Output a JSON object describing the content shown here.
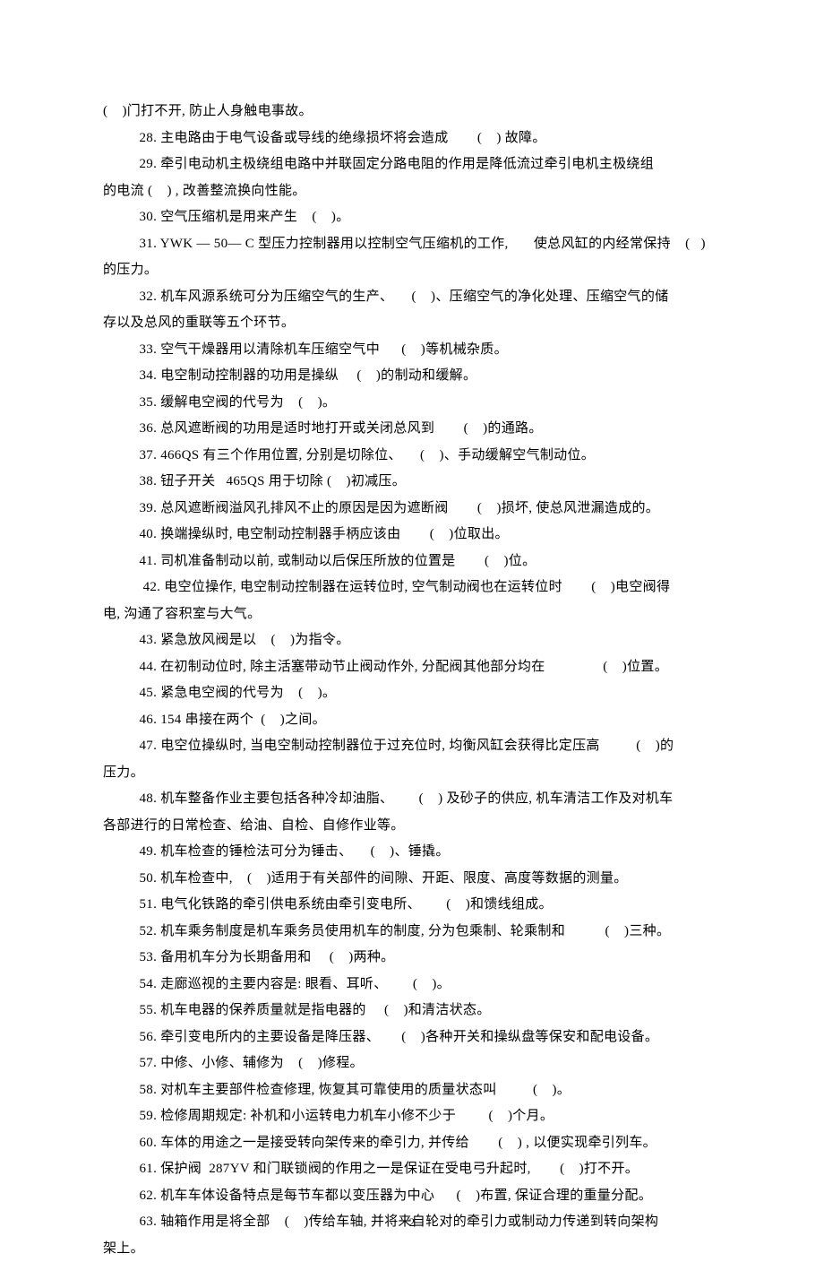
{
  "page": {
    "number": "2",
    "fontsize": 15,
    "lineheight": 29.5,
    "color": "#000000",
    "background": "#ffffff"
  },
  "lines": [
    {
      "cls": "cont",
      "text": "(    )门打不开, 防止人身触电事故。"
    },
    {
      "cls": "indent",
      "text": "28. 主电路由于电气设备或导线的绝缘损坏将会造成        (    ) 故障。"
    },
    {
      "cls": "indent",
      "text": "29. 牵引电动机主极绕组电路中并联固定分路电阻的作用是降低流过牵引电机主极绕组"
    },
    {
      "cls": "cont",
      "text": "的电流 (    ) , 改善整流换向性能。"
    },
    {
      "cls": "indent",
      "text": "30. 空气压缩机是用来产生    (    )。"
    },
    {
      "cls": "indent",
      "text": "31. YWK — 50— C 型压力控制器用以控制空气压缩机的工作,       使总风缸的内经常保持    (   )"
    },
    {
      "cls": "cont",
      "text": "的压力。"
    },
    {
      "cls": "indent",
      "text": "32. 机车风源系统可分为压缩空气的生产、     (    )、压缩空气的净化处理、压缩空气的储"
    },
    {
      "cls": "cont",
      "text": "存以及总风的重联等五个环节。"
    },
    {
      "cls": "indent",
      "text": "33. 空气干燥器用以清除机车压缩空气中      (    )等机械杂质。"
    },
    {
      "cls": "indent",
      "text": "34. 电空制动控制器的功用是操纵     (    )的制动和缓解。"
    },
    {
      "cls": "indent",
      "text": "35. 缓解电空阀的代号为    (    )。"
    },
    {
      "cls": "indent",
      "text": "36. 总风遮断阀的功用是适时地打开或关闭总风到        (    )的通路。"
    },
    {
      "cls": "indent",
      "text": "37. 466QS 有三个作用位置, 分别是切除位、     (    )、手动缓解空气制动位。"
    },
    {
      "cls": "indent",
      "text": "38. 钮子开关   465QS 用于切除 (    )初减压。"
    },
    {
      "cls": "indent",
      "text": "39. 总风遮断阀溢风孔排风不止的原因是因为遮断阀        (    )损坏, 使总风泄漏造成的。"
    },
    {
      "cls": "indent",
      "text": "40. 换端操纵时, 电空制动控制器手柄应该由        (    )位取出。"
    },
    {
      "cls": "indent",
      "text": "41. 司机准备制动以前, 或制动以后保压所放的位置是        (    )位。"
    },
    {
      "cls": "indent",
      "text": " 42. 电空位操作, 电空制动控制器在运转位时, 空气制动阀也在运转位时        (    )电空阀得"
    },
    {
      "cls": "cont",
      "text": "电, 沟通了容积室与大气。"
    },
    {
      "cls": "indent",
      "text": "43. 紧急放风阀是以    (    )为指令。"
    },
    {
      "cls": "indent",
      "text": "44. 在初制动位时, 除主活塞带动节止阀动作外, 分配阀其他部分均在                (    )位置。"
    },
    {
      "cls": "indent",
      "text": "45. 紧急电空阀的代号为    (    )。"
    },
    {
      "cls": "indent",
      "text": "46. 154 串接在两个  (    )之间。"
    },
    {
      "cls": "indent",
      "text": "47. 电空位操纵时, 当电空制动控制器位于过充位时, 均衡风缸会获得比定压高          (    )的"
    },
    {
      "cls": "cont",
      "text": "压力。"
    },
    {
      "cls": "indent",
      "text": "48. 机车整备作业主要包括各种冷却油脂、       (    ) 及砂子的供应, 机车清洁工作及对机车"
    },
    {
      "cls": "cont",
      "text": "各部进行的日常检查、给油、自检、自修作业等。"
    },
    {
      "cls": "indent",
      "text": "49. 机车检查的锤检法可分为锤击、     (    )、锤撬。"
    },
    {
      "cls": "indent",
      "text": "50. 机车检查中,    (    )适用于有关部件的间隙、开距、限度、高度等数据的测量。"
    },
    {
      "cls": "indent",
      "text": "51. 电气化铁路的牵引供电系统由牵引变电所、       (    )和馈线组成。"
    },
    {
      "cls": "indent",
      "text": "52. 机车乘务制度是机车乘务员使用机车的制度, 分为包乘制、轮乘制和           (    )三种。"
    },
    {
      "cls": "indent",
      "text": "53. 备用机车分为长期备用和     (    )两种。"
    },
    {
      "cls": "indent",
      "text": "54. 走廊巡视的主要内容是: 眼看、耳听、       (    )。"
    },
    {
      "cls": "indent",
      "text": "55. 机车电器的保养质量就是指电器的     (    )和清洁状态。"
    },
    {
      "cls": "indent",
      "text": "56. 牵引变电所内的主要设备是降压器、      (    )各种开关和操纵盘等保安和配电设备。"
    },
    {
      "cls": "indent",
      "text": "57. 中修、小修、辅修为    (    )修程。"
    },
    {
      "cls": "indent",
      "text": "58. 对机车主要部件检查修理, 恢复其可靠使用的质量状态叫          (    )。"
    },
    {
      "cls": "indent",
      "text": "59. 检修周期规定: 补机和小运转电力机车小修不少于         (    )个月。"
    },
    {
      "cls": "indent",
      "text": "60. 车体的用途之一是接受转向架传来的牵引力, 并传给        (    ) , 以便实现牵引列车。"
    },
    {
      "cls": "indent",
      "text": "61. 保护阀  287YV 和门联锁阀的作用之一是保证在受电弓升起时,        (    )打不开。"
    },
    {
      "cls": "indent",
      "text": "62. 机车车体设备特点是每节车都以变压器为中心      (    )布置, 保证合理的重量分配。"
    },
    {
      "cls": "indent",
      "text": "63. 轴箱作用是将全部    (    )传给车轴, 并将来自轮对的牵引力或制动力传递到转向架构"
    },
    {
      "cls": "cont",
      "text": "架上。"
    }
  ]
}
